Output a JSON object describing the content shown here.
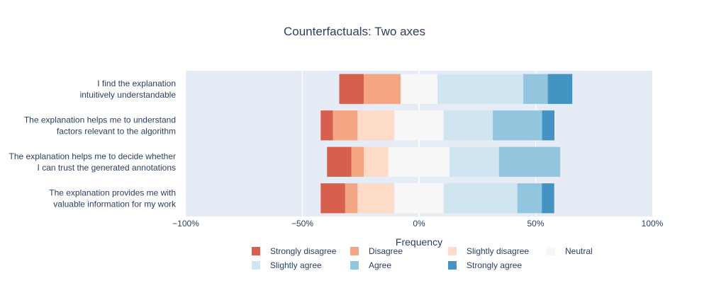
{
  "chart_data": {
    "type": "bar",
    "orientation": "horizontal",
    "barmode": "diverging-stacked",
    "title": "Counterfactuals: Two axes",
    "xlabel": "Frequency",
    "xlim": [
      -100,
      100
    ],
    "x_ticks": [
      -100,
      -50,
      0,
      50,
      100
    ],
    "x_tick_labels": [
      "−100%",
      "−50%",
      "0%",
      "50%",
      "100%"
    ],
    "grid": true,
    "legend_position": "bottom",
    "categories": [
      [
        "I find the explanation",
        "intuitively understandable"
      ],
      [
        "The explanation helps me to understand",
        "factors relevant to the algorithm"
      ],
      [
        "The explanation helps me to decide whether",
        "I can trust the generated annotations"
      ],
      [
        "The explanation provides me with",
        "valuable information for my work"
      ]
    ],
    "series": [
      {
        "name": "Strongly disagree",
        "color": "#d6604d",
        "values": [
          10.5,
          5.3,
          10.5,
          10.5
        ]
      },
      {
        "name": "Disagree",
        "color": "#f4a582",
        "values": [
          15.8,
          10.5,
          5.3,
          5.3
        ]
      },
      {
        "name": "Slightly disagree",
        "color": "#fddbc7",
        "values": [
          0,
          15.8,
          10.5,
          15.8
        ]
      },
      {
        "name": "Neutral",
        "color": "#f7f7f7",
        "values": [
          15.8,
          21.1,
          26.3,
          21.1
        ]
      },
      {
        "name": "Slightly agree",
        "color": "#d1e5f0",
        "values": [
          36.8,
          21.1,
          21.1,
          31.6
        ]
      },
      {
        "name": "Agree",
        "color": "#92c5de",
        "values": [
          10.5,
          21.1,
          26.3,
          10.5
        ]
      },
      {
        "name": "Strongly agree",
        "color": "#4393c3",
        "values": [
          10.5,
          5.3,
          0,
          5.3
        ]
      }
    ],
    "colors": {
      "plot_background": "#e5ecf6",
      "gridline": "#ffffff",
      "text": "#2a3f5f"
    }
  }
}
